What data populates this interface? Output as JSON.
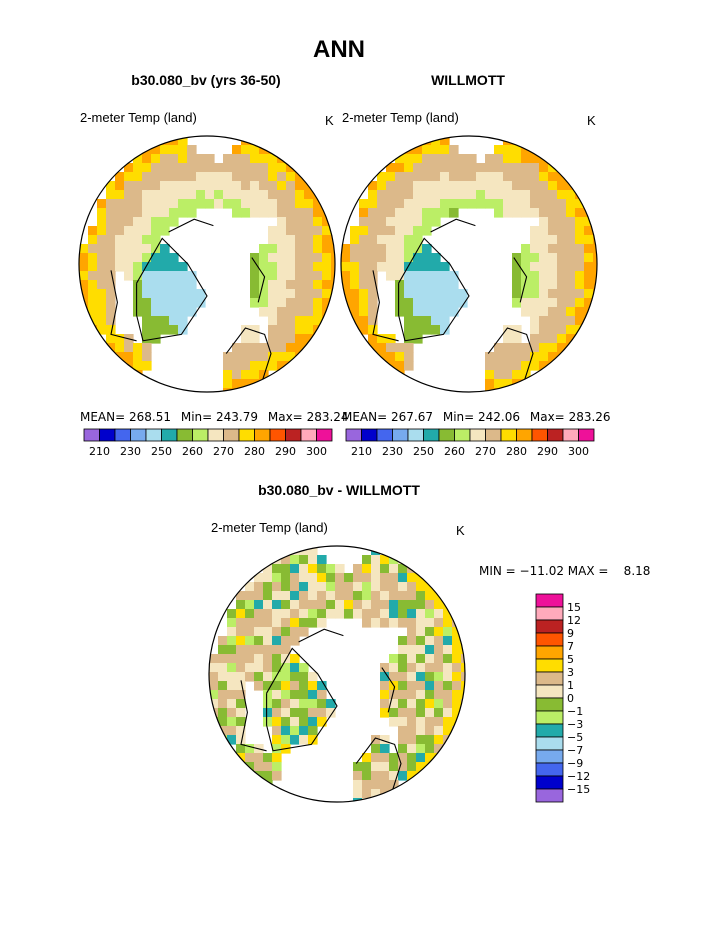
{
  "page": {
    "title": "ANN"
  },
  "colors": {
    "ocean": "#ffffff",
    "outline": "#000000",
    "temp_scale": [
      "#9966dd",
      "#0000cc",
      "#4466ee",
      "#77aaee",
      "#aaddee",
      "#22aaaa",
      "#88bb33",
      "#bbee66",
      "#f5e6c0",
      "#dcb98a",
      "#ffdd00",
      "#ffa500",
      "#ff5500",
      "#bb2222",
      "#ffaabb",
      "#ee1199"
    ],
    "diff_scale": [
      "#9966dd",
      "#0000cc",
      "#4466ee",
      "#77aaee",
      "#aaddee",
      "#22aaaa",
      "#bbee66",
      "#88bb33",
      "#f5e6c0",
      "#dcb98a",
      "#ffdd00",
      "#ffa500",
      "#ff5500",
      "#bb2222",
      "#ffaabb",
      "#ee1199"
    ]
  },
  "chart_data": [
    {
      "type": "heatmap",
      "title": "b30.080_bv (yrs 36-50)",
      "subtitle": "2-meter Temp (land)",
      "units": "K",
      "projection": "north polar stereographic",
      "stats": {
        "mean_label": "MEAN=",
        "mean": "268.51",
        "min_label": "Min=",
        "min": "243.79",
        "max_label": "Max=",
        "max": "283.24"
      },
      "colorbar": {
        "tick_labels": [
          "210",
          "230",
          "250",
          "260",
          "270",
          "280",
          "290",
          "300"
        ]
      }
    },
    {
      "type": "heatmap",
      "title": "WILLMOTT",
      "subtitle": "2-meter Temp (land)",
      "units": "K",
      "projection": "north polar stereographic",
      "stats": {
        "mean_label": "MEAN=",
        "mean": "267.67",
        "min_label": "Min=",
        "min": "242.06",
        "max_label": "Max=",
        "max": "283.26"
      },
      "colorbar": {
        "tick_labels": [
          "210",
          "230",
          "250",
          "260",
          "270",
          "280",
          "290",
          "300"
        ]
      }
    },
    {
      "type": "heatmap",
      "title": "b30.080_bv - WILLMOTT",
      "subtitle": "2-meter Temp (land)",
      "units": "K",
      "projection": "north polar stereographic",
      "stats_text": "MIN = −11.02 MAX =    8.18",
      "colorbar": {
        "tick_labels": [
          "15",
          "12",
          "9",
          "7",
          "5",
          "3",
          "1",
          "0",
          "−1",
          "−3",
          "−5",
          "−7",
          "−9",
          "−12",
          "−15"
        ]
      }
    }
  ]
}
